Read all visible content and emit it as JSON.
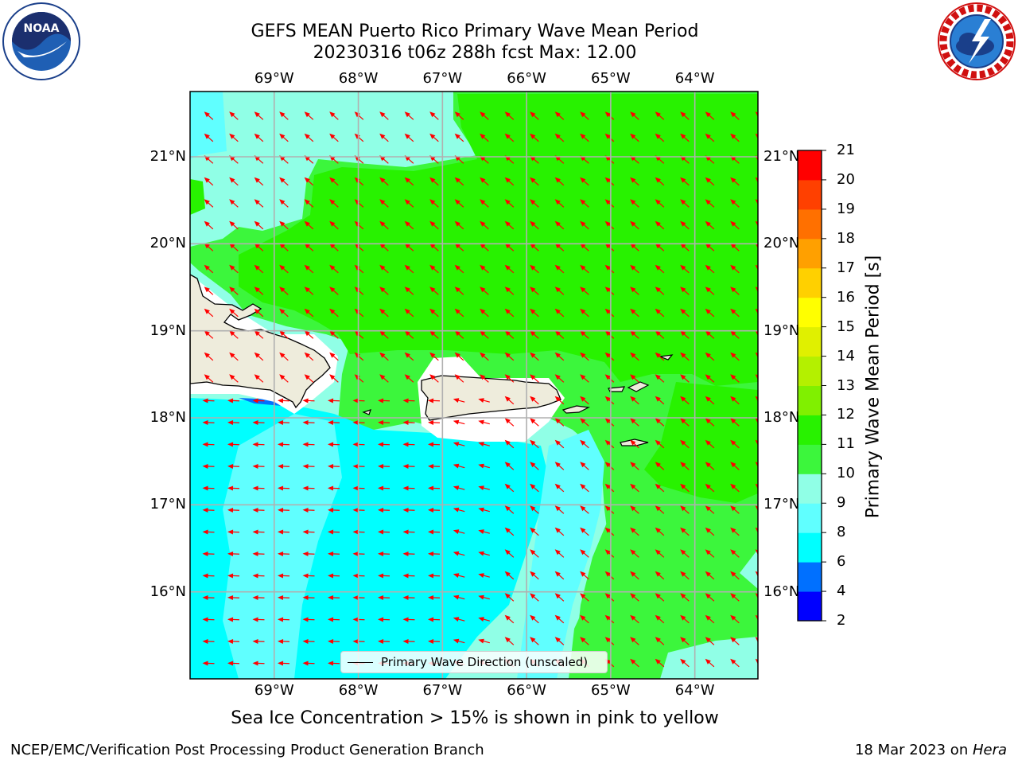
{
  "header": {
    "title_line1": "GEFS MEAN Puerto Rico Primary Wave Mean Period",
    "title_line2": "20230316 t06z 288h fcst   Max: 12.00",
    "left_logo_text": "NOAA",
    "left_logo_ring_text": "NATIONAL OCEANIC AND ATMOSPHERIC ADMINISTRATION · U.S. DEPARTMENT OF COMMERCE",
    "right_logo_ring_text": "NATIONAL WEATHER SERVICE"
  },
  "map": {
    "lon_range": [
      -70.0,
      -63.25
    ],
    "lat_range": [
      15.0,
      21.75
    ],
    "lon_ticks": [
      "69°W",
      "68°W",
      "67°W",
      "66°W",
      "65°W",
      "64°W"
    ],
    "lat_ticks": [
      "21°N",
      "20°N",
      "19°N",
      "18°N",
      "17°N",
      "16°N"
    ],
    "gridlines": true,
    "land_color": "#eeecdc",
    "arrow_color": "#ff0000",
    "arrow_direction": "toward southwest (east of ~66.8°W), toward west (southwest region)"
  },
  "legend": {
    "label": "Primary Wave Direction (unscaled)",
    "placement": "bottom-center"
  },
  "colorbar": {
    "title": "Primary Wave Mean Period [s]",
    "labels": [
      "2",
      "4",
      "6",
      "8",
      "9",
      "10",
      "11",
      "12",
      "13",
      "14",
      "15",
      "16",
      "17",
      "18",
      "19",
      "20",
      "21"
    ],
    "bin_colors": [
      "#0000ff",
      "#0070ff",
      "#00ffff",
      "#60ffff",
      "#90ffe6",
      "#3cf63c",
      "#28f200",
      "#80f000",
      "#b4f000",
      "#e0f000",
      "#ffff00",
      "#ffd000",
      "#ffa000",
      "#ff7000",
      "#ff4000",
      "#ff0000"
    ]
  },
  "subtitle": "Sea Ice Concentration > 15% is shown in pink to yellow",
  "footer": {
    "left": "NCEP/EMC/Verification Post Processing Product Generation Branch",
    "right_prefix": "18 Mar 2023 on ",
    "right_host": "Hera"
  }
}
